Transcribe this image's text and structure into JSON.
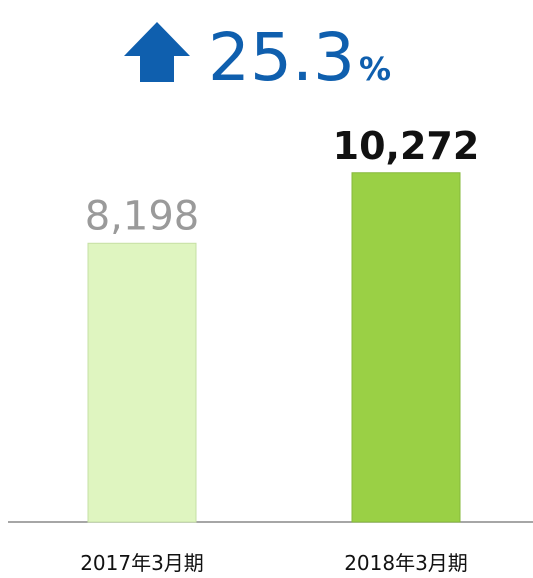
{
  "chart_data": {
    "type": "bar",
    "headline": {
      "value": 25.3,
      "suffix": "%"
    },
    "categories": [
      "2017年3月期",
      "2018年3月期"
    ],
    "values": [
      8198,
      10272
    ],
    "value_labels": [
      "8,198",
      "10,272"
    ],
    "colors": [
      "#dff5c0",
      "#9ad045"
    ],
    "ylim": [
      0,
      15000
    ]
  }
}
